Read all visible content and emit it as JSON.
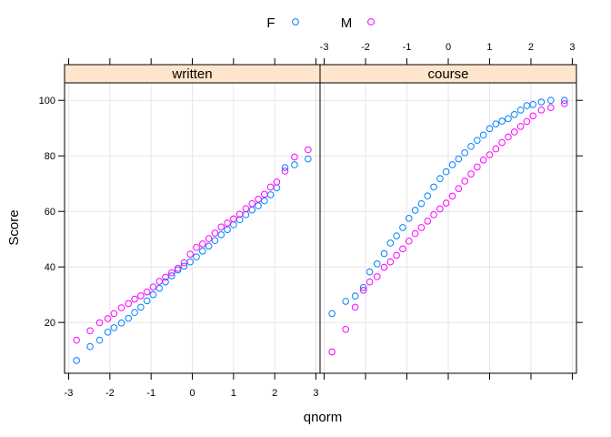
{
  "chart_data": {
    "type": "scatter",
    "xlabel": "qnorm",
    "ylabel": "Score",
    "x_ticks": [
      -3,
      -2,
      -1,
      0,
      1,
      2,
      3
    ],
    "y_ticks": [
      20,
      40,
      60,
      80,
      100
    ],
    "xlim": [
      -3.1,
      3.1
    ],
    "ylim": [
      1.7,
      106.3
    ],
    "grid": true,
    "legend": {
      "placement": "top",
      "entries": [
        {
          "label": "F",
          "color": "#0080ff"
        },
        {
          "label": "M",
          "color": "#ff00ff"
        }
      ]
    },
    "colors": {
      "F": "#0080ff",
      "M": "#ff00ff",
      "strip": "#ffe5cc"
    },
    "panels": [
      {
        "strip": "written",
        "series": [
          {
            "name": "F",
            "points": [
              [
                -2.81,
                6.3
              ],
              [
                -2.48,
                11.3
              ],
              [
                -2.25,
                13.6
              ],
              [
                -2.05,
                16.5
              ],
              [
                -1.9,
                18.1
              ],
              [
                -1.72,
                19.8
              ],
              [
                -1.55,
                21.5
              ],
              [
                -1.4,
                23.6
              ],
              [
                -1.25,
                25.5
              ],
              [
                -1.1,
                27.8
              ],
              [
                -0.95,
                30.0
              ],
              [
                -0.8,
                32.3
              ],
              [
                -0.65,
                34.6
              ],
              [
                -0.5,
                36.8
              ],
              [
                -0.35,
                38.9
              ],
              [
                -0.2,
                40.3
              ],
              [
                -0.05,
                41.8
              ],
              [
                0.1,
                43.6
              ],
              [
                0.25,
                45.7
              ],
              [
                0.4,
                47.5
              ],
              [
                0.55,
                49.5
              ],
              [
                0.7,
                51.6
              ],
              [
                0.85,
                53.4
              ],
              [
                1.0,
                55.2
              ],
              [
                1.15,
                57.0
              ],
              [
                1.3,
                58.8
              ],
              [
                1.45,
                60.5
              ],
              [
                1.6,
                62.0
              ],
              [
                1.75,
                63.8
              ],
              [
                1.9,
                66.0
              ],
              [
                2.05,
                68.5
              ],
              [
                2.25,
                75.8
              ],
              [
                2.48,
                76.8
              ],
              [
                2.81,
                78.9
              ]
            ]
          },
          {
            "name": "M",
            "points": [
              [
                -2.81,
                13.6
              ],
              [
                -2.48,
                17.0
              ],
              [
                -2.25,
                19.9
              ],
              [
                -2.05,
                21.4
              ],
              [
                -1.9,
                23.2
              ],
              [
                -1.72,
                25.3
              ],
              [
                -1.55,
                26.8
              ],
              [
                -1.4,
                28.4
              ],
              [
                -1.25,
                29.6
              ],
              [
                -1.1,
                31.0
              ],
              [
                -0.95,
                32.8
              ],
              [
                -0.8,
                34.8
              ],
              [
                -0.65,
                36.3
              ],
              [
                -0.5,
                37.9
              ],
              [
                -0.35,
                39.5
              ],
              [
                -0.2,
                41.5
              ],
              [
                -0.05,
                44.6
              ],
              [
                0.1,
                47.0
              ],
              [
                0.25,
                48.3
              ],
              [
                0.4,
                50.2
              ],
              [
                0.55,
                52.2
              ],
              [
                0.7,
                54.4
              ],
              [
                0.85,
                55.8
              ],
              [
                1.0,
                57.3
              ],
              [
                1.15,
                59.0
              ],
              [
                1.3,
                61.0
              ],
              [
                1.45,
                62.8
              ],
              [
                1.6,
                64.4
              ],
              [
                1.75,
                66.2
              ],
              [
                1.9,
                68.8
              ],
              [
                2.05,
                70.6
              ],
              [
                2.25,
                74.5
              ],
              [
                2.48,
                79.6
              ],
              [
                2.81,
                82.2
              ]
            ]
          }
        ]
      },
      {
        "strip": "course",
        "series": [
          {
            "name": "F",
            "points": [
              [
                -2.81,
                23.2
              ],
              [
                -2.48,
                27.6
              ],
              [
                -2.25,
                29.5
              ],
              [
                -2.05,
                32.6
              ],
              [
                -1.9,
                38.2
              ],
              [
                -1.72,
                41.1
              ],
              [
                -1.55,
                44.8
              ],
              [
                -1.4,
                48.6
              ],
              [
                -1.25,
                51.2
              ],
              [
                -1.1,
                54.2
              ],
              [
                -0.95,
                57.5
              ],
              [
                -0.8,
                60.4
              ],
              [
                -0.65,
                62.8
              ],
              [
                -0.5,
                65.6
              ],
              [
                -0.35,
                68.8
              ],
              [
                -0.2,
                71.8
              ],
              [
                -0.05,
                74.3
              ],
              [
                0.1,
                76.8
              ],
              [
                0.25,
                78.9
              ],
              [
                0.4,
                81.1
              ],
              [
                0.55,
                83.4
              ],
              [
                0.7,
                85.6
              ],
              [
                0.85,
                87.5
              ],
              [
                1.0,
                89.8
              ],
              [
                1.15,
                91.5
              ],
              [
                1.3,
                92.5
              ],
              [
                1.45,
                93.4
              ],
              [
                1.6,
                94.9
              ],
              [
                1.75,
                96.5
              ],
              [
                1.9,
                98.1
              ],
              [
                2.05,
                98.5
              ],
              [
                2.25,
                99.4
              ],
              [
                2.48,
                100.0
              ],
              [
                2.81,
                100.0
              ]
            ]
          },
          {
            "name": "M",
            "points": [
              [
                -2.81,
                9.4
              ],
              [
                -2.48,
                17.5
              ],
              [
                -2.25,
                25.5
              ],
              [
                -2.05,
                31.6
              ],
              [
                -1.9,
                34.6
              ],
              [
                -1.72,
                36.5
              ],
              [
                -1.55,
                39.9
              ],
              [
                -1.4,
                41.8
              ],
              [
                -1.25,
                44.2
              ],
              [
                -1.1,
                46.5
              ],
              [
                -0.95,
                49.3
              ],
              [
                -0.8,
                52.0
              ],
              [
                -0.65,
                54.2
              ],
              [
                -0.5,
                56.5
              ],
              [
                -0.35,
                58.8
              ],
              [
                -0.2,
                60.9
              ],
              [
                -0.05,
                63.0
              ],
              [
                0.1,
                65.5
              ],
              [
                0.25,
                68.2
              ],
              [
                0.4,
                70.9
              ],
              [
                0.55,
                73.5
              ],
              [
                0.7,
                76.0
              ],
              [
                0.85,
                78.5
              ],
              [
                1.0,
                80.4
              ],
              [
                1.15,
                82.5
              ],
              [
                1.3,
                84.8
              ],
              [
                1.45,
                86.8
              ],
              [
                1.6,
                88.6
              ],
              [
                1.75,
                90.6
              ],
              [
                1.9,
                92.4
              ],
              [
                2.05,
                94.4
              ],
              [
                2.25,
                96.5
              ],
              [
                2.48,
                97.4
              ],
              [
                2.81,
                98.8
              ]
            ]
          }
        ]
      }
    ]
  }
}
